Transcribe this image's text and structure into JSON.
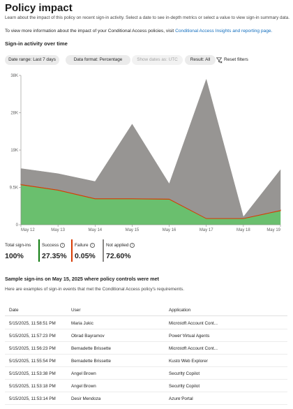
{
  "header": {
    "title": "Policy impact",
    "description": "Learn about the impact of this policy on recent sign-in activity. Select a date to see in-depth metrics or select a value to view sign-in summary data.",
    "more_info_text": "To view more information about the impact of your Conditional Access policies, visit",
    "more_info_link": "Conditional Access Insights and reporting page."
  },
  "section_title": "Sign-in activity over time",
  "filters": {
    "date_range": "Date range: Last 7 days",
    "data_format": "Data format: Percentage",
    "show_dates": "Show dates as: UTC",
    "result": "Result: All",
    "reset": "Reset filters"
  },
  "chart_data": {
    "type": "area",
    "categories": [
      "May 12",
      "May 13",
      "May 14",
      "May 15",
      "May 16",
      "May 17",
      "May 18",
      "May 19"
    ],
    "y_ticks": [
      "0",
      "9.5K",
      "19K",
      "28K",
      "38K"
    ],
    "ylim": [
      0,
      38000
    ],
    "grid": false,
    "series": [
      {
        "name": "Success",
        "color": "#6abf6e",
        "values": [
          10200,
          8800,
          6600,
          6600,
          6500,
          1600,
          1600,
          3600
        ]
      },
      {
        "name": "Failure",
        "color": "#d83b01",
        "values": [
          150,
          150,
          150,
          150,
          150,
          100,
          100,
          150
        ]
      },
      {
        "name": "Not applied",
        "color": "#979593",
        "values": [
          3950,
          4050,
          4250,
          18850,
          3750,
          35300,
          300,
          10250
        ]
      }
    ]
  },
  "stats": {
    "total_label": "Total sign-ins",
    "total_value": "100%",
    "success_label": "Success",
    "success_value": "27.35%",
    "success_color": "#107c10",
    "failure_label": "Failure",
    "failure_value": "0.05%",
    "failure_color": "#d83b01",
    "not_applied_label": "Not applied",
    "not_applied_value": "72.60%",
    "not_applied_color": "#8a8886"
  },
  "sample": {
    "title": "Sample sign-ins on May 15, 2025 where policy controls were met",
    "description": "Here are examples of sign-in events that met the Conditional Access policy's requirements.",
    "columns": [
      "Date",
      "User",
      "Application"
    ],
    "rows": [
      {
        "date": "5/15/2025, 11:58:51 PM",
        "user": "Maria Jukic",
        "app": "Microsoft Account Cont..."
      },
      {
        "date": "5/15/2025, 11:57:23 PM",
        "user": "Obrad Bayramov",
        "app": "Power Virtual Agents"
      },
      {
        "date": "5/15/2025, 11:56:23 PM",
        "user": "Bernadette Brissette",
        "app": "Microsoft Account Cont..."
      },
      {
        "date": "5/15/2025, 11:55:54 PM",
        "user": "Bernadette Brissette",
        "app": "Kusto Web Explorer"
      },
      {
        "date": "5/15/2025, 11:53:38 PM",
        "user": "Angel Brown",
        "app": "Security Copilot"
      },
      {
        "date": "5/15/2025, 11:53:18 PM",
        "user": "Angel Brown",
        "app": "Security Copilot"
      },
      {
        "date": "5/15/2025, 11:53:14 PM",
        "user": "Desir Mendoza",
        "app": "Azure Portal"
      }
    ]
  }
}
